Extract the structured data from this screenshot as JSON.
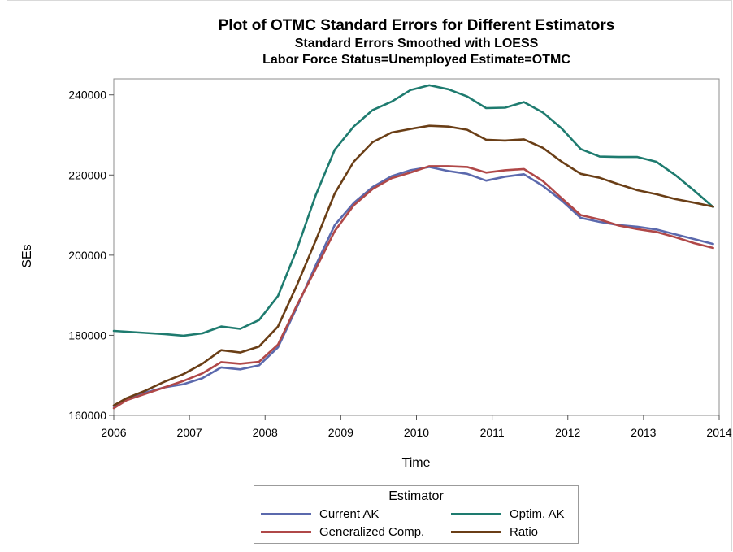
{
  "chart_data": {
    "type": "line",
    "title": "Plot of OTMC Standard Errors for Different Estimators",
    "subtitle": "Standard Errors Smoothed with LOESS",
    "subtitle2": "Labor Force Status=Unemployed Estimate=OTMC",
    "xlabel": "Time",
    "ylabel": "SEs",
    "xlim": [
      2006,
      2014
    ],
    "ylim": [
      160000,
      244000
    ],
    "xticks": [
      "2006",
      "2007",
      "2008",
      "2009",
      "2010",
      "2011",
      "2012",
      "2013",
      "2014"
    ],
    "yticks": [
      "160000",
      "180000",
      "200000",
      "220000",
      "240000"
    ],
    "grid": false,
    "legend": {
      "title": "Estimator",
      "placement": "bottom"
    },
    "x": [
      2006.0,
      2006.17,
      2006.42,
      2006.67,
      2006.92,
      2007.17,
      2007.42,
      2007.67,
      2007.92,
      2008.17,
      2008.42,
      2008.67,
      2008.92,
      2009.17,
      2009.42,
      2009.67,
      2009.92,
      2010.17,
      2010.42,
      2010.67,
      2010.92,
      2011.17,
      2011.42,
      2011.67,
      2011.92,
      2012.17,
      2012.42,
      2012.67,
      2012.92,
      2013.17,
      2013.42,
      2013.67,
      2013.92
    ],
    "series": [
      {
        "name": "Current AK",
        "color": "#5b69ad",
        "values": [
          162300,
          164100,
          165700,
          167000,
          167800,
          169300,
          172000,
          171500,
          172500,
          177000,
          187000,
          197500,
          207500,
          213000,
          217000,
          219700,
          221200,
          222000,
          221000,
          220300,
          218600,
          219600,
          220200,
          217300,
          213600,
          209300,
          208300,
          207500,
          207100,
          206400,
          205200,
          204000,
          202800
        ]
      },
      {
        "name": "Optim. AK",
        "color": "#1e7b6f",
        "values": [
          181100,
          180900,
          180600,
          180300,
          179900,
          180500,
          182200,
          181600,
          183800,
          189800,
          201500,
          215000,
          226300,
          232100,
          236200,
          238300,
          241200,
          242400,
          241400,
          239600,
          236700,
          236800,
          238200,
          235600,
          231600,
          226500,
          224600,
          224500,
          224500,
          223300,
          220000,
          216100,
          212000
        ]
      },
      {
        "name": "Generalized Comp.",
        "color": "#b04848",
        "values": [
          161800,
          163800,
          165400,
          167000,
          168600,
          170500,
          173300,
          172900,
          173400,
          177700,
          187500,
          196600,
          206000,
          212400,
          216500,
          219200,
          220600,
          222200,
          222200,
          222000,
          220600,
          221200,
          221500,
          218500,
          214200,
          210000,
          208900,
          207400,
          206500,
          205800,
          204500,
          203000,
          201800
        ]
      },
      {
        "name": "Ratio",
        "color": "#6a3e16",
        "values": [
          162500,
          164300,
          166200,
          168400,
          170300,
          172900,
          176300,
          175700,
          177200,
          182200,
          192500,
          203700,
          215400,
          223300,
          228200,
          230600,
          231500,
          232300,
          232100,
          231300,
          228800,
          228600,
          228900,
          226800,
          223300,
          220300,
          219300,
          217700,
          216200,
          215200,
          214000,
          213100,
          212100
        ]
      }
    ]
  }
}
